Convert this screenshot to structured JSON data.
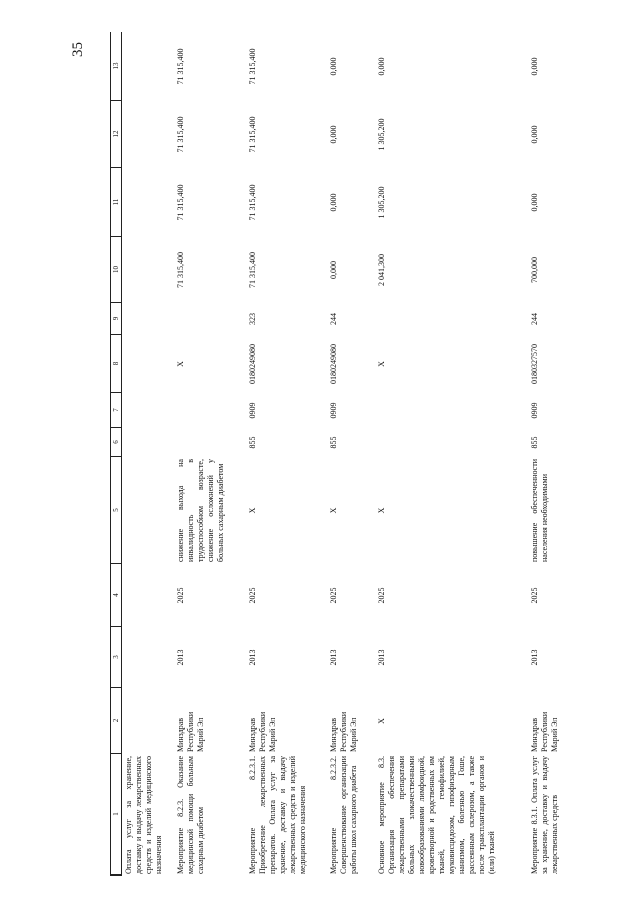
{
  "page_number": "35",
  "header": [
    "1",
    "2",
    "3",
    "4",
    "5",
    "6",
    "7",
    "8",
    "9",
    "10",
    "11",
    "12",
    "13"
  ],
  "rows": [
    {
      "cells": [
        "Оплата услуг за хранение, доставку и выдачу лекарственных средств и изделий медицинского назначения",
        "",
        "",
        "",
        "",
        "",
        "",
        "",
        "",
        "",
        "",
        "",
        ""
      ]
    },
    {
      "cells": [
        "Мероприятие 8.2.3. Оказание медицинской помощи больным сахарным диабетом",
        "Минздрав Республики Марий Эл",
        "2013",
        "2025",
        "снижение выхода на инвалидность в трудоспособном возрасте, снижение осложнений у больных сахарным диабетом",
        "",
        "",
        "X",
        "",
        "71 315,400",
        "71 315,400",
        "71 315,400",
        "71 315,400"
      ]
    },
    {
      "cells": [
        "Мероприятие 8.2.3.1. Приобретение лекарственных препаратов. Оплата услуг за хранение, доставку и выдачу лекарственных средств и изделий медицинского назначения",
        "Минздрав Республики Марий Эл",
        "2013",
        "2025",
        "X",
        "855",
        "0909",
        "0180249080",
        "323",
        "71 315,400",
        "71 315,400",
        "71 315,400",
        "71 315,400"
      ]
    },
    {
      "cells": [
        "Мероприятие 8.2.3.2. Совершенствование организации работы школ сахарного диабета",
        "Минздрав Республики Марий Эл",
        "2013",
        "2025",
        "X",
        "855",
        "0909",
        "0180249080",
        "244",
        "0,000",
        "0,000",
        "0,000",
        "0,000"
      ]
    },
    {
      "cells": [
        "Основное мероприятие 8.3. Организация обеспечения лекарственными препаратами больных злокачественными новообразованиями лимфоидной, кроветворной и родственных им тканей, гемофилией, муковисцидозом, гипофизарным нанизмом, болезнью Гоше, рассеянным склерозом, а также после трансплантации органов и (или) тканей",
        "X",
        "2013",
        "2025",
        "X",
        "",
        "",
        "X",
        "",
        "2 041,300",
        "1 305,200",
        "1 305,200",
        "0,000"
      ]
    },
    {
      "cells": [
        "Мероприятие 8.3.1. Оплата услуг за хранение, доставку и выдачу лекарственных средств",
        "Минздрав Республики Марий Эл",
        "2013",
        "2025",
        "повышение обеспеченности населения необходимыми",
        "855",
        "0909",
        "0180327570",
        "244",
        "700,000",
        "0,000",
        "0,000",
        "0,000"
      ]
    }
  ]
}
